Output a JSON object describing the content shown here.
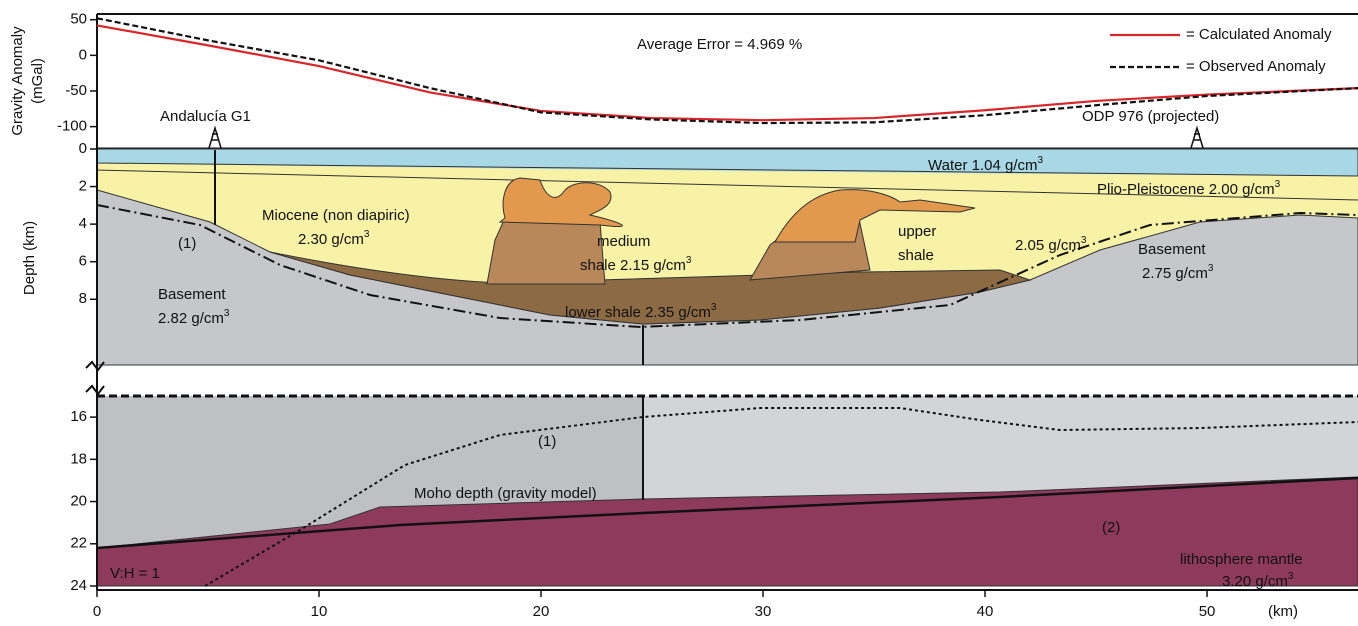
{
  "chart_data": [
    {
      "type": "line",
      "ylabel": [
        "Gravity Anomaly",
        "(mGal)"
      ],
      "annotations": [
        {
          "text": "Average Error = 4.969 %"
        }
      ],
      "x": [
        0,
        5,
        10,
        15,
        20,
        25,
        30,
        35,
        40,
        45,
        50,
        56.8
      ],
      "xlim": [
        0,
        56.8
      ],
      "ylim": [
        -130,
        58
      ],
      "yticks": [
        50,
        0,
        -50,
        -100
      ],
      "legend": "upper right",
      "series": [
        {
          "name": "= Calculated Anomaly",
          "color": "#d8262b",
          "style": "solid",
          "values": [
            42,
            14,
            -15,
            -52,
            -78,
            -88,
            -91,
            -88,
            -77,
            -64,
            -55,
            -46
          ]
        },
        {
          "name": "= Observed Anomaly",
          "color": "#111111",
          "style": "dashed",
          "values": [
            52,
            21,
            -7,
            -46,
            -80,
            -90,
            -95,
            -94,
            -84,
            -70,
            -57,
            -46
          ]
        }
      ]
    },
    {
      "type": "section",
      "ylabel": "Depth (km)",
      "y_inverted": true,
      "xlim": [
        0,
        56.8
      ],
      "ylim": [
        0,
        11.5
      ],
      "yticks": [
        0,
        2,
        4,
        6,
        8
      ],
      "annotations": [
        {
          "text": "Andalucía G1"
        },
        {
          "text": "ODP 976 (projected)"
        },
        {
          "text": "Water 1.04 g/cm",
          "sup": "3"
        },
        {
          "text": "Plio-Pleistocene 2.00 g/cm",
          "sup": "3"
        },
        {
          "text": "Miocene (non diapiric)"
        },
        {
          "text": "2.30 g/cm",
          "sup": "3"
        },
        {
          "text": "medium"
        },
        {
          "text": "shale 2.15 g/cm",
          "sup": "3"
        },
        {
          "text": "upper"
        },
        {
          "text": "shale"
        },
        {
          "text": "2.05 g/cm",
          "sup": "3"
        },
        {
          "text": "Basement"
        },
        {
          "text": "2.75 g/cm",
          "sup": "3"
        },
        {
          "text": "Basement"
        },
        {
          "text": "2.82 g/cm",
          "sup": "3"
        },
        {
          "text": "lower shale 2.35 g/cm",
          "sup": "3"
        },
        {
          "text": "(1)"
        }
      ]
    },
    {
      "type": "section",
      "y_inverted": true,
      "xlim": [
        0,
        56.8
      ],
      "ylim": [
        15,
        24
      ],
      "yticks": [
        16,
        18,
        20,
        22,
        24
      ],
      "xticks": [
        0,
        10,
        20,
        30,
        40,
        50
      ],
      "xlabel": "(km)",
      "annotations": [
        {
          "text": "(1)"
        },
        {
          "text": "Moho depth (gravity model)"
        },
        {
          "text": "(2)"
        },
        {
          "text": "lithosphere mantle"
        },
        {
          "text": "3.20 g/cm",
          "sup": "3"
        },
        {
          "text": "V:H = 1"
        }
      ]
    }
  ]
}
